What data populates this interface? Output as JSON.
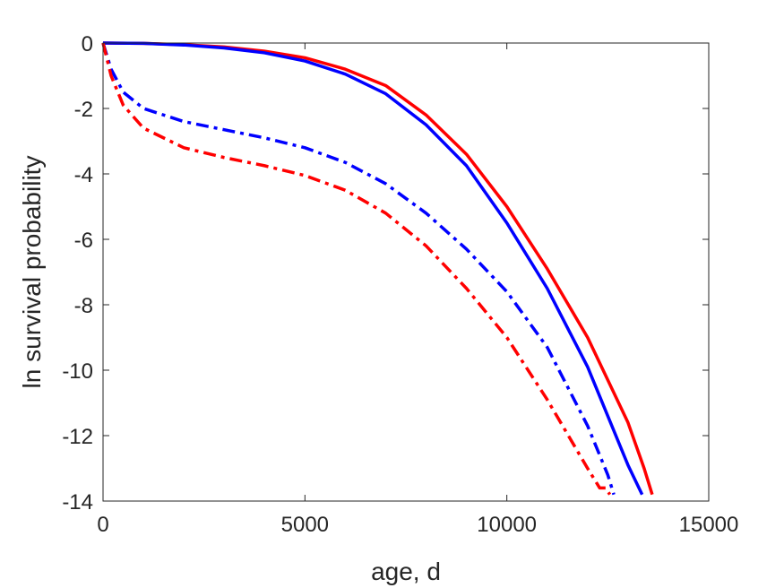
{
  "chart_data": {
    "type": "line",
    "title": "",
    "xlabel": "age, d",
    "ylabel": "ln survival probability",
    "xlim": [
      0,
      15000
    ],
    "ylim": [
      -14,
      0
    ],
    "x_ticks": [
      0,
      5000,
      10000,
      15000
    ],
    "x_tick_labels": [
      "0",
      "5000",
      "10000",
      "15000"
    ],
    "y_ticks": [
      0,
      -2,
      -4,
      -6,
      -8,
      -10,
      -12,
      -14
    ],
    "y_tick_labels": [
      "0",
      "-2",
      "-4",
      "-6",
      "-8",
      "-10",
      "-12",
      "-14"
    ],
    "grid": false,
    "legend": "none",
    "series": [
      {
        "color": "#ff0000",
        "style": "solid",
        "x": [
          0,
          1000,
          2000,
          3000,
          4000,
          5000,
          6000,
          7000,
          8000,
          9000,
          10000,
          11000,
          12000,
          13000,
          13400,
          13600
        ],
        "y": [
          0,
          -0.01,
          -0.05,
          -0.12,
          -0.25,
          -0.45,
          -0.8,
          -1.3,
          -2.2,
          -3.4,
          -5.0,
          -6.9,
          -9.0,
          -11.6,
          -13.0,
          -13.8
        ]
      },
      {
        "color": "#0000ff",
        "style": "solid",
        "x": [
          0,
          1000,
          2000,
          3000,
          4000,
          5000,
          6000,
          7000,
          8000,
          9000,
          10000,
          11000,
          12000,
          13000,
          13350
        ],
        "y": [
          0,
          -0.01,
          -0.06,
          -0.15,
          -0.3,
          -0.55,
          -0.95,
          -1.55,
          -2.5,
          -3.75,
          -5.5,
          -7.5,
          -9.9,
          -12.9,
          -13.8
        ]
      },
      {
        "color": "#0000ff",
        "style": "dashdot",
        "x": [
          0,
          200,
          500,
          1000,
          2000,
          3000,
          4000,
          5000,
          6000,
          7000,
          8000,
          9000,
          10000,
          11000,
          12000,
          12500,
          12650
        ],
        "y": [
          0,
          -0.8,
          -1.5,
          -2.0,
          -2.4,
          -2.65,
          -2.9,
          -3.2,
          -3.65,
          -4.3,
          -5.2,
          -6.3,
          -7.6,
          -9.3,
          -11.7,
          -13.2,
          -13.8
        ]
      },
      {
        "color": "#ff0000",
        "style": "dashdot",
        "x": [
          0,
          200,
          500,
          1000,
          2000,
          3000,
          4000,
          5000,
          6000,
          7000,
          8000,
          9000,
          10000,
          11000,
          12000,
          12300,
          12450,
          12550
        ],
        "y": [
          0,
          -1.0,
          -1.9,
          -2.6,
          -3.2,
          -3.5,
          -3.75,
          -4.05,
          -4.5,
          -5.2,
          -6.2,
          -7.5,
          -9.0,
          -10.9,
          -13.0,
          -13.6,
          -13.6,
          -13.8
        ]
      }
    ]
  }
}
